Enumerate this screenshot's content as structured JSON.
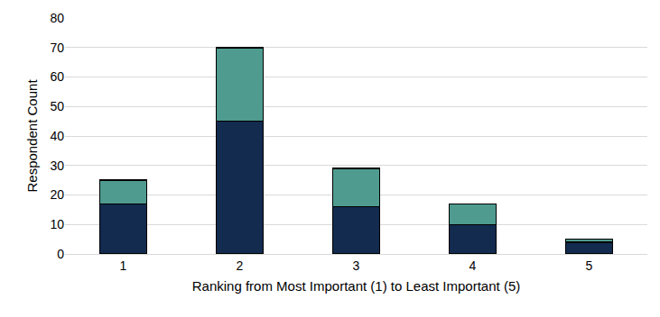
{
  "chart_data": {
    "type": "bar",
    "x_label": "Ranking from Most Important (1) to Least Important (5)",
    "y_label": "Respondent Count",
    "categories": [
      "1",
      "2",
      "3",
      "4",
      "5"
    ],
    "series": [
      {
        "color": "#122b4f",
        "values": [
          17,
          45,
          16,
          10,
          4
        ]
      },
      {
        "color": "#4f9b90",
        "values": [
          8,
          25,
          13,
          7,
          1
        ]
      }
    ],
    "stacked": true,
    "ylim": [
      0,
      80
    ],
    "yticks": [
      0,
      10,
      20,
      30,
      40,
      50,
      60,
      70,
      80
    ],
    "grid": true
  }
}
